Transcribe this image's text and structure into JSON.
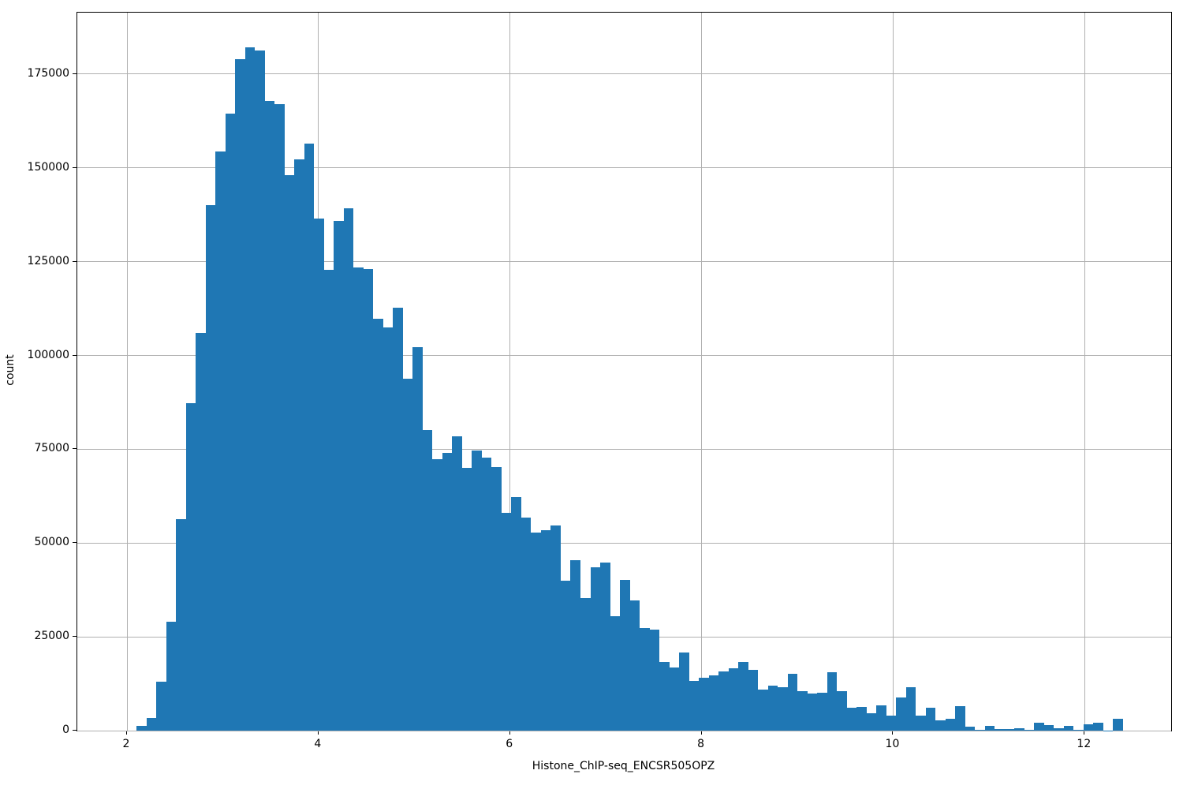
{
  "chart_data": {
    "type": "bar",
    "subtype": "histogram",
    "title": "",
    "xlabel": "Histone_ChIP-seq_ENCSR505OPZ",
    "ylabel": "count",
    "legend": null,
    "grid": true,
    "bar_color": "#1f77b4",
    "grid_color": "#b0b0b0",
    "spine_color": "#000000",
    "text_color": "#000000",
    "xlim": [
      1.481,
      12.903
    ],
    "ylim": [
      0,
      191400
    ],
    "x_ticks": [
      2,
      4,
      6,
      8,
      10,
      12
    ],
    "y_ticks": [
      0,
      25000,
      50000,
      75000,
      100000,
      125000,
      150000,
      175000
    ],
    "bin_start": 2.1,
    "bin_width": 0.103,
    "counts": [
      1250,
      3300,
      13100,
      29000,
      56300,
      87300,
      106000,
      140000,
      154400,
      164500,
      179000,
      182200,
      181400,
      167800,
      167100,
      148100,
      152300,
      156500,
      136500,
      122900,
      135800,
      139300,
      123400,
      123000,
      109900,
      107400,
      112700,
      93800,
      102200,
      80100,
      72400,
      74100,
      78400,
      70100,
      74700,
      72800,
      70300,
      58100,
      62300,
      56700,
      52900,
      53500,
      54700,
      40000,
      45400,
      35300,
      43500,
      44700,
      30500,
      40200,
      34800,
      27400,
      27000,
      18300,
      16800,
      20800,
      13300,
      14000,
      14800,
      15800,
      16600,
      18400,
      16100,
      10900,
      11900,
      11600,
      15200,
      10500,
      9800,
      10000,
      15500,
      10600,
      6000,
      6300,
      4700,
      6800,
      3900,
      8750,
      11550,
      4000,
      6100,
      2800,
      3200,
      6500,
      1100,
      250,
      1300,
      500,
      400,
      550,
      250,
      2100,
      1400,
      700,
      1250,
      150,
      1700,
      2100,
      80,
      3100
    ]
  }
}
